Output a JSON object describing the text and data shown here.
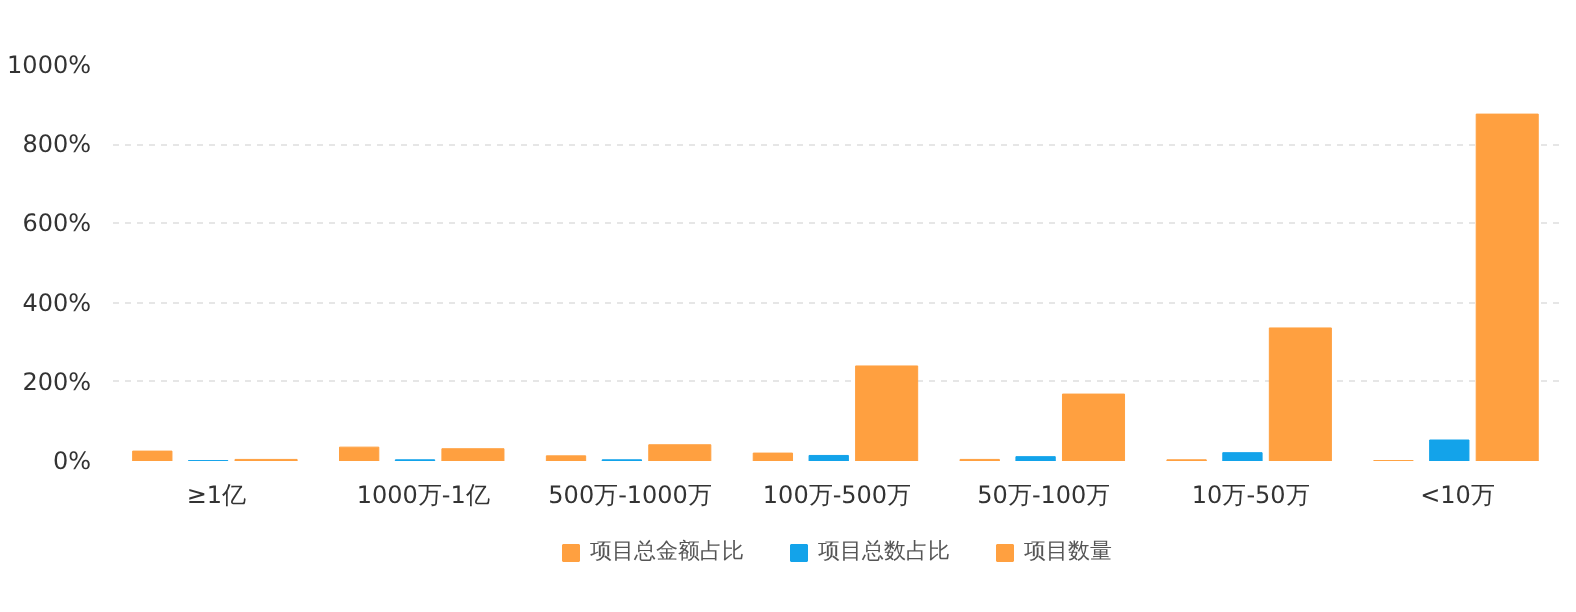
{
  "chart_data": {
    "type": "bar",
    "categories": [
      "≥1亿",
      "1000万-1亿",
      "500万-1000万",
      "100万-500万",
      "50万-100万",
      "10万-50万",
      "<10万"
    ],
    "series": [
      {
        "name": "项目总金额占比",
        "color": "#ffa040",
        "values": [
          25,
          35,
          13,
          20,
          4,
          3,
          1
        ]
      },
      {
        "name": "项目总数占比",
        "color": "#13a3ea",
        "values": [
          1,
          3,
          3,
          14,
          11,
          21,
          53
        ]
      },
      {
        "name": "项目数量",
        "color": "#ffa040",
        "values": [
          4,
          31,
          41,
          240,
          169,
          336,
          876
        ]
      }
    ],
    "ylim": [
      0,
      1000
    ],
    "yticks": [
      {
        "value": 0,
        "label": "0%"
      },
      {
        "value": 200,
        "label": "200%"
      },
      {
        "value": 400,
        "label": "400%"
      },
      {
        "value": 600,
        "label": "600%"
      },
      {
        "value": 800,
        "label": "800%"
      },
      {
        "value": 1000,
        "label": "1000%"
      }
    ],
    "grid": "y",
    "legend": "bottom"
  }
}
